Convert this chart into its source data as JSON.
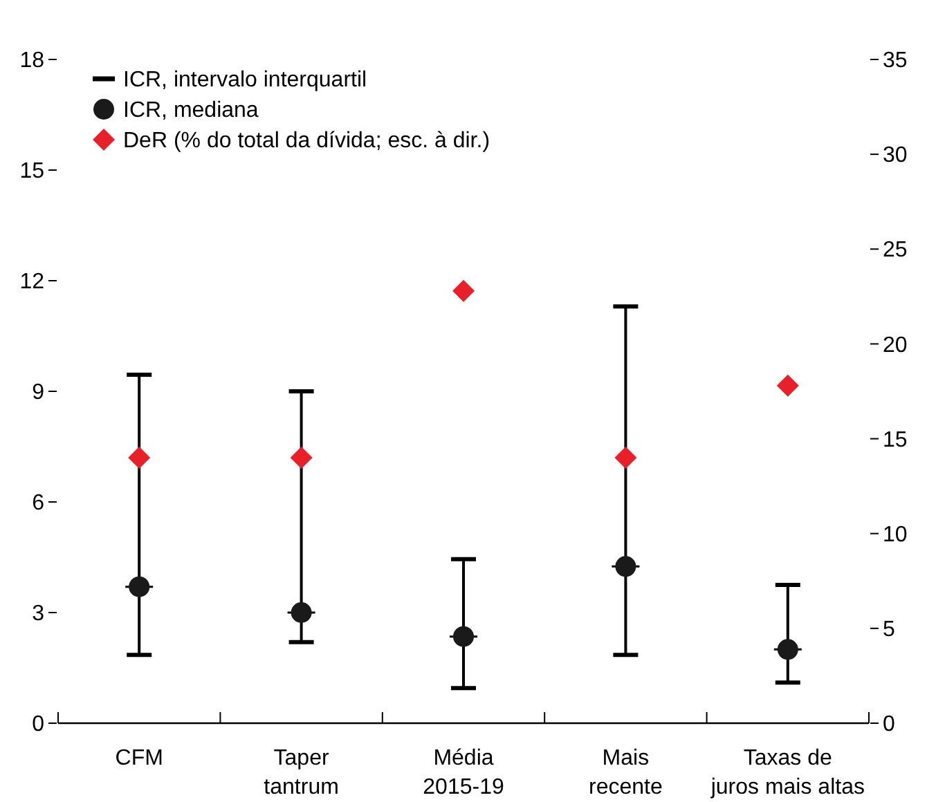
{
  "chart_data": {
    "type": "scatter",
    "categories": [
      "CFM",
      "Taper\ntantrum",
      "Média\n2015-19",
      "Mais\nrecente",
      "Taxas de\njuros mais altas"
    ],
    "series": [
      {
        "name": "ICR, intervalo interquartil",
        "type": "box",
        "color": "#000000",
        "boxes": [
          {
            "low": 1.85,
            "q1": 1.85,
            "median": 3.7,
            "q3": 9.45,
            "high": 9.45
          },
          {
            "low": 2.2,
            "q1": 2.2,
            "median": 3.0,
            "q3": 9.0,
            "high": 9.0
          },
          {
            "low": 0.95,
            "q1": 0.95,
            "median": 2.35,
            "q3": 4.45,
            "high": 4.45
          },
          {
            "low": 1.85,
            "q1": 1.85,
            "median": 4.25,
            "q3": 11.3,
            "high": 11.3
          },
          {
            "low": 1.1,
            "q1": 1.1,
            "median": 2.0,
            "q3": 3.75,
            "high": 3.75
          }
        ]
      },
      {
        "name": "ICR, mediana",
        "marker": "circle",
        "color": "#1a1a1a",
        "values": [
          3.7,
          3.0,
          2.35,
          4.25,
          2.0
        ]
      },
      {
        "name": "DeR (% do total da dívida; esc. à dir.)",
        "marker": "diamond",
        "axis": "y2",
        "color": "#e8202a",
        "values": [
          14.0,
          14.0,
          22.8,
          14.0,
          17.8
        ]
      }
    ],
    "ylim": [
      0,
      18
    ],
    "yticks": [
      0,
      3,
      6,
      9,
      12,
      15,
      18
    ],
    "y2lim": [
      0,
      35
    ],
    "y2ticks": [
      0,
      5,
      10,
      15,
      20,
      25,
      30,
      35
    ],
    "legend": "top left",
    "grid": false
  }
}
